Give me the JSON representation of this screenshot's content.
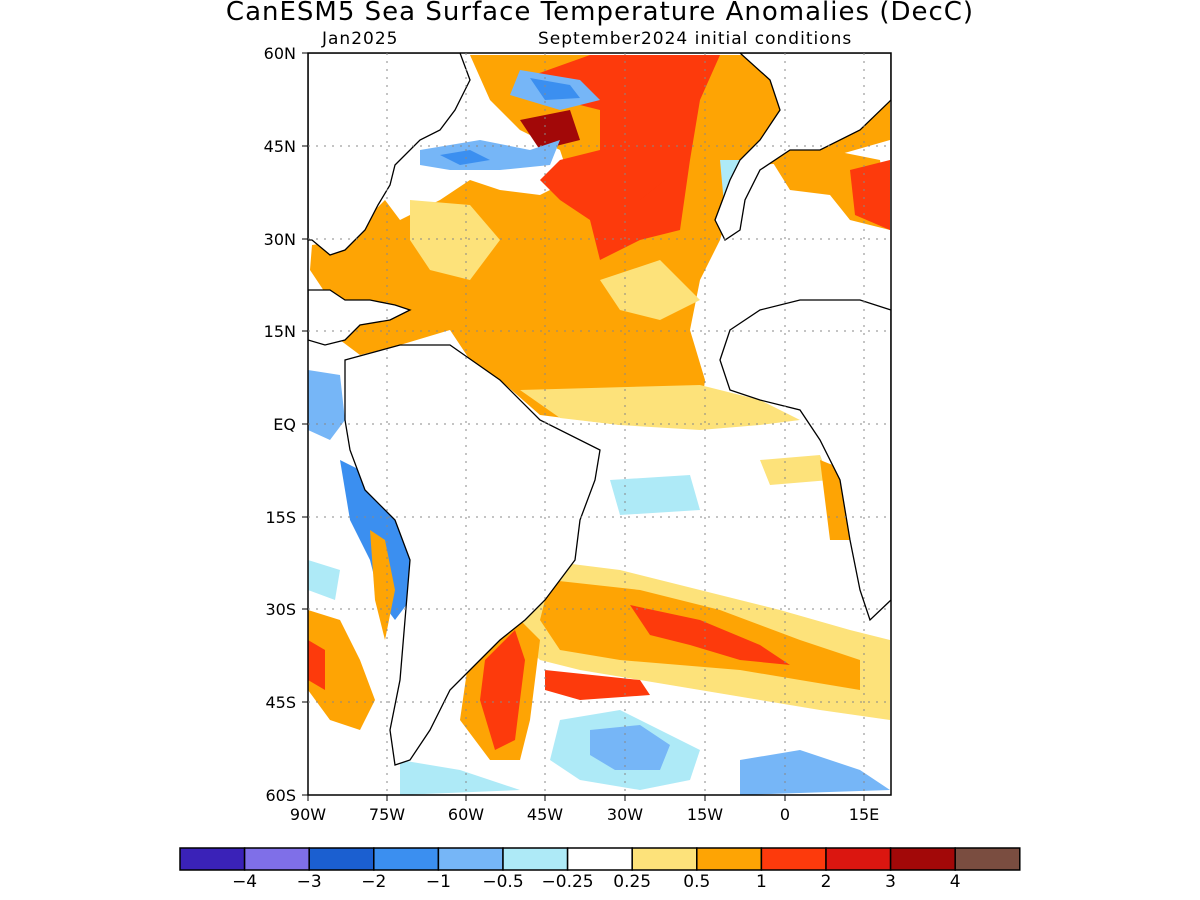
{
  "title": "CanESM5 Sea Surface Temperature Anomalies (DecC)",
  "subtitle_left": "Jan2025",
  "subtitle_right": "September2024 initial conditions",
  "lat_labels": [
    "60N",
    "45N",
    "30N",
    "15N",
    "EQ",
    "15S",
    "30S",
    "45S",
    "60S"
  ],
  "lon_labels": [
    "90W",
    "75W",
    "60W",
    "45W",
    "30W",
    "15W",
    "0",
    "15E"
  ],
  "colorbar": {
    "colors": [
      "#3a22b8",
      "#7f6fe8",
      "#1b5fd0",
      "#3b8ff0",
      "#76b6f7",
      "#aeeaf7",
      "#ffffff",
      "#fde27a",
      "#fea404",
      "#fd3a0c",
      "#db1610",
      "#a20808",
      "#7a4d40"
    ],
    "labels": [
      "−4",
      "−3",
      "−2",
      "−1",
      "−0.5",
      "−0.25",
      "0.25",
      "0.5",
      "1",
      "2",
      "3",
      "4"
    ]
  }
}
